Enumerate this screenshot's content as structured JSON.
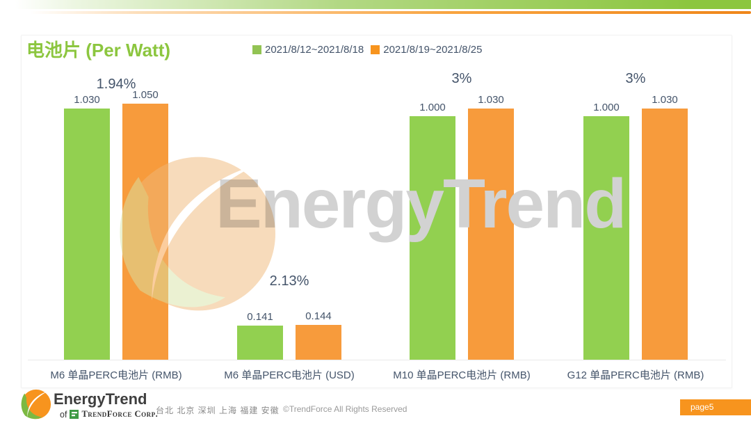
{
  "header": {
    "title": "电池片 (Per Watt)",
    "legend": [
      {
        "label": "2021/8/12~2021/8/18",
        "color": "#92C353"
      },
      {
        "label": "2021/8/19~2021/8/25",
        "color": "#F7941E"
      }
    ]
  },
  "chart_data": {
    "type": "bar",
    "title": "电池片 (Per Watt)",
    "categories": [
      "M6 单晶PERC电池片 (RMB)",
      "M6 单晶PERC电池片 (USD)",
      "M10 单晶PERC电池片 (RMB)",
      "G12 单晶PERC电池片 (RMB)"
    ],
    "series": [
      {
        "name": "2021/8/12~2021/8/18",
        "color": "#92D050",
        "values": [
          1.03,
          0.141,
          1.0,
          1.0
        ]
      },
      {
        "name": "2021/8/19~2021/8/25",
        "color": "#F79B3C",
        "values": [
          1.05,
          0.144,
          1.03,
          1.03
        ]
      }
    ],
    "change_labels": [
      "1.94%",
      "2.13%",
      "3%",
      "3%"
    ],
    "value_format": "0.000",
    "ylim": [
      0,
      1.15
    ],
    "grid": false,
    "legend_position": "top"
  },
  "watermark": {
    "text": "EnergyTrend"
  },
  "colors": {
    "title_green": "#8CC63F",
    "header_band_green": "#8CC63F",
    "header_band_orange": "#F7941E",
    "label_text": "#44546A",
    "badge_orange": "#F7941E"
  },
  "footer": {
    "logo_text": "EnergyTrend",
    "logo_subtext_prefix": "of",
    "logo_subtext_brand": "TrendForce Corp.",
    "locations": "台北 北京 深圳 上海 福建 安徽",
    "copyright": "©TrendForce All Rights Reserved",
    "page_badge": "page5"
  }
}
